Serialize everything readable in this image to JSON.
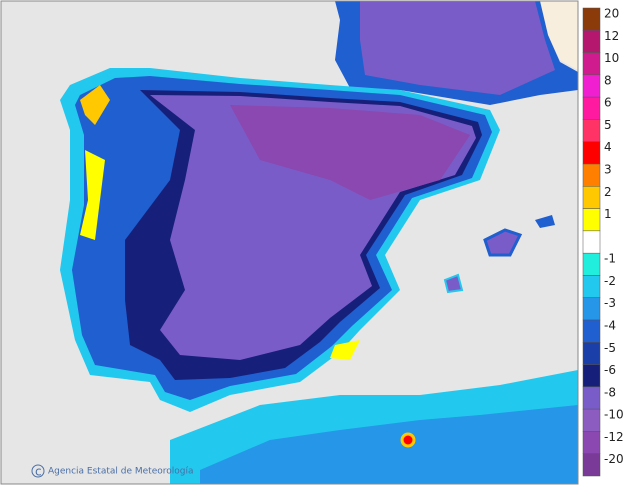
{
  "credit": "Agencia Estatal de Meteorología",
  "legend": [
    {
      "label": "20",
      "color": "#8b3a0a"
    },
    {
      "label": "12",
      "color": "#b5166e"
    },
    {
      "label": "10",
      "color": "#d01b8e"
    },
    {
      "label": "8",
      "color": "#f020d0"
    },
    {
      "label": "6",
      "color": "#ff1aa0"
    },
    {
      "label": "5",
      "color": "#ff3366"
    },
    {
      "label": "4",
      "color": "#ff0000"
    },
    {
      "label": "3",
      "color": "#ff8000"
    },
    {
      "label": "2",
      "color": "#ffc800"
    },
    {
      "label": "1",
      "color": "#ffff00"
    },
    {
      "label": "-1",
      "color": "#22eedd"
    },
    {
      "label": "-2",
      "color": "#22c8ee"
    },
    {
      "label": "-3",
      "color": "#2596e8"
    },
    {
      "label": "-4",
      "color": "#1f5fd0"
    },
    {
      "label": "-5",
      "color": "#1a3fa8"
    },
    {
      "label": "-6",
      "color": "#16207a"
    },
    {
      "label": "-8",
      "color": "#7a5cc8"
    },
    {
      "label": "-10",
      "color": "#8c5cc0"
    },
    {
      "label": "-12",
      "color": "#8a48b0"
    },
    {
      "label": "-20",
      "color": "#7a3a98"
    }
  ]
}
